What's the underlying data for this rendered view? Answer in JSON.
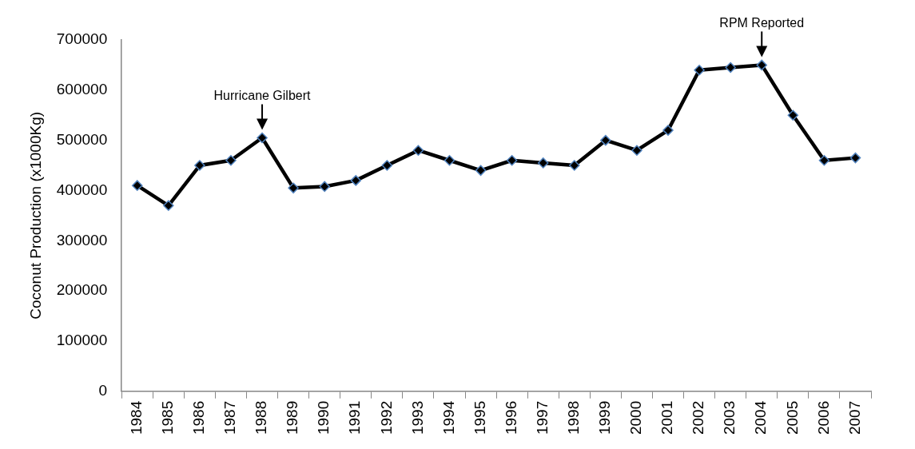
{
  "chart_data": {
    "type": "line",
    "ylabel": "Coconut Production (x1000Kg)",
    "categories": [
      "1984",
      "1985",
      "1986",
      "1987",
      "1988",
      "1989",
      "1990",
      "1991",
      "1992",
      "1993",
      "1994",
      "1995",
      "1996",
      "1997",
      "1998",
      "1999",
      "2000",
      "2001",
      "2002",
      "2003",
      "2004",
      "2005",
      "2006",
      "2007"
    ],
    "series": [
      {
        "color": "#000000",
        "values": [
          410000,
          370000,
          450000,
          460000,
          505000,
          405000,
          408000,
          420000,
          450000,
          480000,
          460000,
          440000,
          460000,
          455000,
          450000,
          500000,
          480000,
          520000,
          640000,
          645000,
          650000,
          550000,
          460000,
          465000
        ]
      }
    ],
    "ylim": [
      0,
      700000
    ],
    "yticks": [
      0,
      100000,
      200000,
      300000,
      400000,
      500000,
      600000,
      700000
    ],
    "grid": false,
    "legend": false,
    "marker": "diamond",
    "line_style": "solid",
    "annotations": [
      {
        "text": "Hurricane Gilbert",
        "x": "1988",
        "y": 505000
      },
      {
        "text": "RPM Reported",
        "x": "2004",
        "y": 650000
      }
    ]
  }
}
